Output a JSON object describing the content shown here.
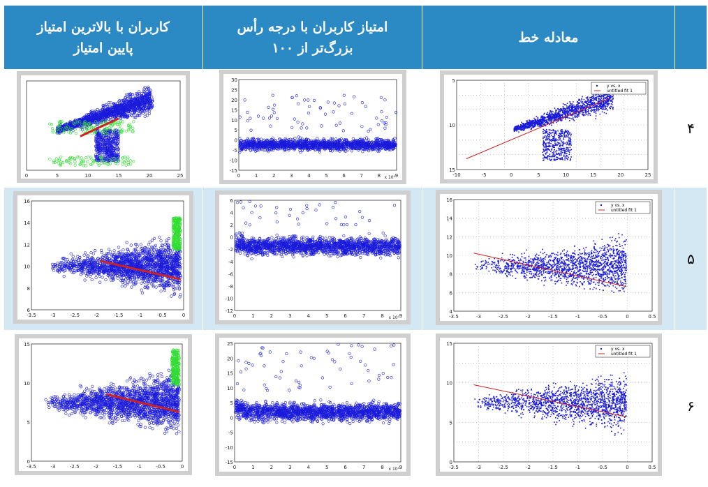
{
  "header": {
    "col_high_low": "کاربران با بالاترین امتیاز\nپایین امتیاز",
    "col_degree": "امتیاز کاربران با درجه رأس\nبزرگ‌تر از ۱۰۰",
    "col_equation": "معادله خط",
    "col_index": ""
  },
  "rows": [
    {
      "index": "۴"
    },
    {
      "index": "۵"
    },
    {
      "index": "۶"
    }
  ],
  "legend": {
    "series1": "y vs. x",
    "series2": "untitled fit 1"
  },
  "axis_ticks": {
    "r4_eq_x": [
      "-10",
      "-5",
      "0",
      "5",
      "10",
      "15",
      "20",
      "25"
    ],
    "r4_eq_y": [
      "5",
      "10",
      "15"
    ],
    "r4_deg_x": [
      "0",
      "1",
      "2",
      "3",
      "4",
      "5",
      "6",
      "7",
      "8",
      "9"
    ],
    "r4_deg_y": [
      "30",
      "25",
      "20",
      "15",
      "10",
      "5",
      "0",
      "-5",
      "-10",
      "-15"
    ],
    "r4_hl_x": [
      "0",
      "5",
      "10",
      "15",
      "20",
      "25"
    ],
    "r5_eq_x": [
      "-3.5",
      "-3",
      "-2.5",
      "-2",
      "-1.5",
      "-1",
      "-0.5",
      "0",
      "0.5"
    ],
    "r5_eq_y": [
      "16",
      "14",
      "12",
      "10",
      "8",
      "6",
      "4"
    ],
    "r5_deg_y": [
      "6",
      "4",
      "2",
      "0",
      "-2",
      "-4",
      "-6",
      "-8",
      "-10",
      "-12"
    ],
    "r5_hl_y": [
      "16",
      "14",
      "12",
      "10",
      "8",
      "6"
    ],
    "r5_hl_x": [
      "-3.5",
      "-3",
      "-2.5",
      "-2",
      "-1.5",
      "-1",
      "-0.5",
      "0"
    ],
    "r6_eq_y": [
      "15",
      "10",
      "5",
      "0"
    ],
    "r6_deg_y": [
      "25",
      "20",
      "15",
      "10",
      "5",
      "0",
      "-5",
      "-10",
      "-15"
    ],
    "r6_hl_y": [
      "15",
      "10",
      "5",
      "0"
    ],
    "exp_label": "x 10⁴"
  },
  "colors": {
    "header": "#2b8ac4",
    "row_light": "#d3e8f3",
    "points": "#1a1adb",
    "fit": "#cc2222",
    "green": "#33dd33"
  }
}
